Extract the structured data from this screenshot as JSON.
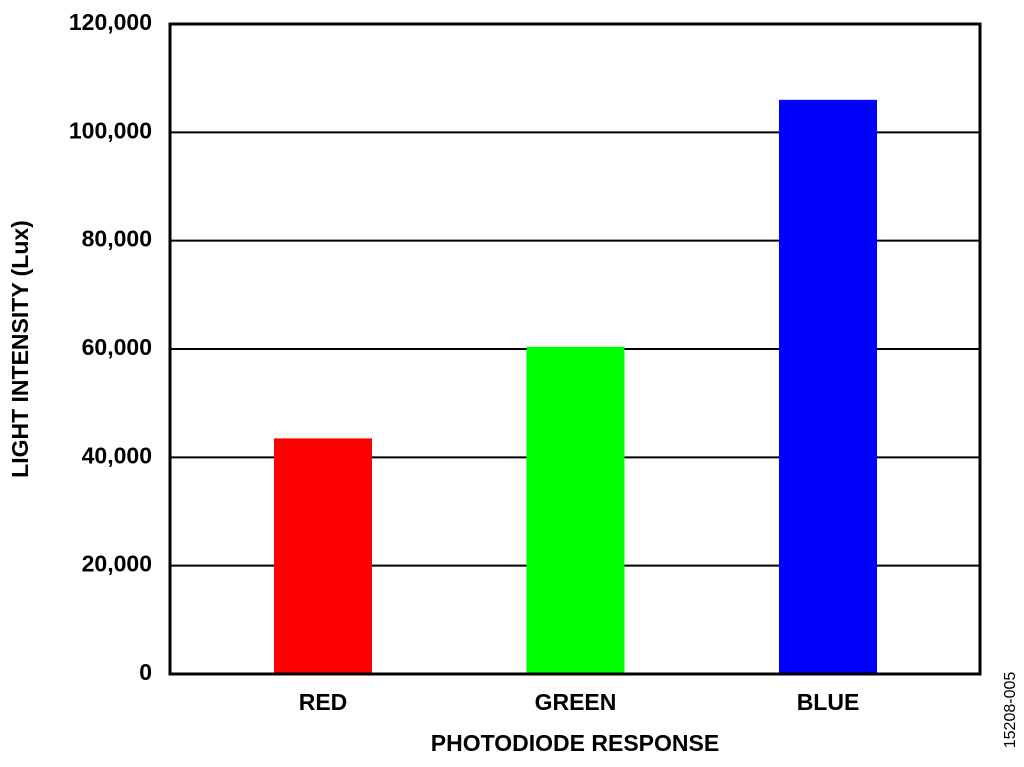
{
  "chart_data": {
    "type": "bar",
    "x_label": "PHOTODIODE RESPONSE",
    "y_label": "LIGHT INTENSITY (Lux)",
    "annotations": [
      "15208-005"
    ],
    "categories": [
      "RED",
      "GREEN",
      "BLUE"
    ],
    "values": [
      43500,
      60400,
      106000
    ],
    "colors": [
      "#ff0000",
      "#00ff00",
      "#0000ff"
    ],
    "ylim": [
      0,
      120000
    ],
    "yticks": [
      0,
      {
        "value": 20000,
        "label": "20,000"
      },
      {
        "value": 40000,
        "label": "40,000"
      },
      {
        "value": 60000,
        "label": "60,000"
      },
      {
        "value": 80000,
        "label": "80,000"
      },
      {
        "value": 100000,
        "label": "100,000"
      },
      {
        "value": 120000,
        "label": "120,000"
      }
    ],
    "grid": true
  }
}
